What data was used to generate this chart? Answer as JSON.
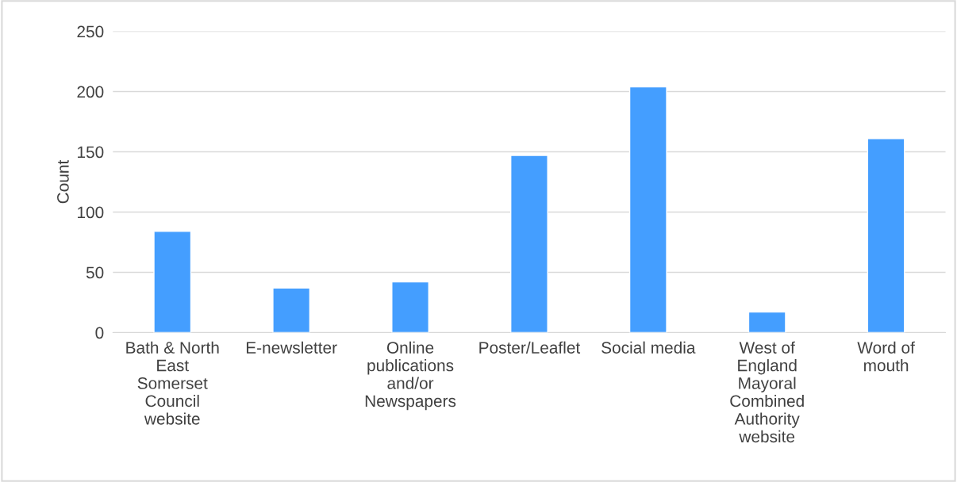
{
  "chart_data": {
    "type": "bar",
    "ylabel": "Count",
    "categories": [
      "Bath & North\nEast\nSomerset\nCouncil\nwebsite",
      "E-newsletter",
      "Online\npublications\nand/or\nNewspapers",
      "Poster/Leaflet",
      "Social media",
      "West of\nEngland\nMayoral\nCombined\nAuthority\nwebsite",
      "Word of\nmouth"
    ],
    "values": [
      84,
      37,
      42,
      147,
      204,
      17,
      161
    ],
    "color": "#449eff",
    "ylim": [
      0,
      250
    ],
    "yticks": [
      0,
      50,
      100,
      150,
      200,
      250
    ],
    "grid": "y",
    "legend": false
  }
}
